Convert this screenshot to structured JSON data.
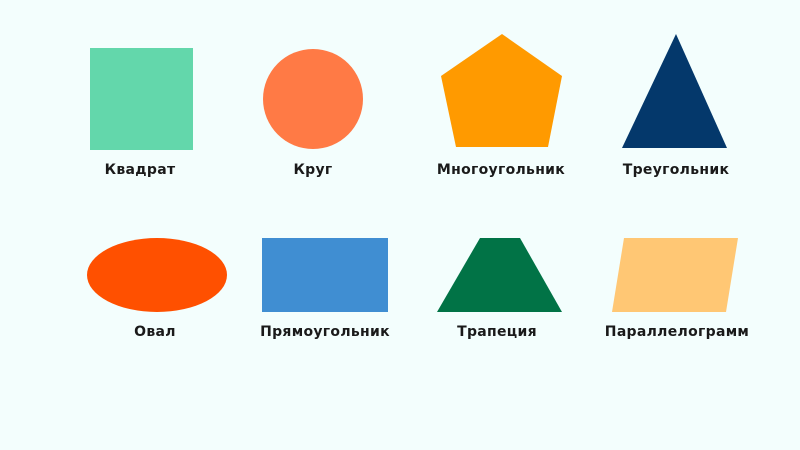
{
  "shapes": [
    {
      "id": "square",
      "label": "Квадрат",
      "color": "#63d7ab"
    },
    {
      "id": "circle",
      "label": "Круг",
      "color": "#ff7a45"
    },
    {
      "id": "pentagon",
      "label": "Многоугольник",
      "color": "#ff9a00"
    },
    {
      "id": "triangle",
      "label": "Треугольник",
      "color": "#04386b"
    },
    {
      "id": "oval",
      "label": "Овал",
      "color": "#ff5000"
    },
    {
      "id": "rectangle",
      "label": "Прямоугольник",
      "color": "#408ed2"
    },
    {
      "id": "trapezoid",
      "label": "Трапеция",
      "color": "#017346"
    },
    {
      "id": "parallelogram",
      "label": "Параллелограмм",
      "color": "#ffc774"
    }
  ]
}
